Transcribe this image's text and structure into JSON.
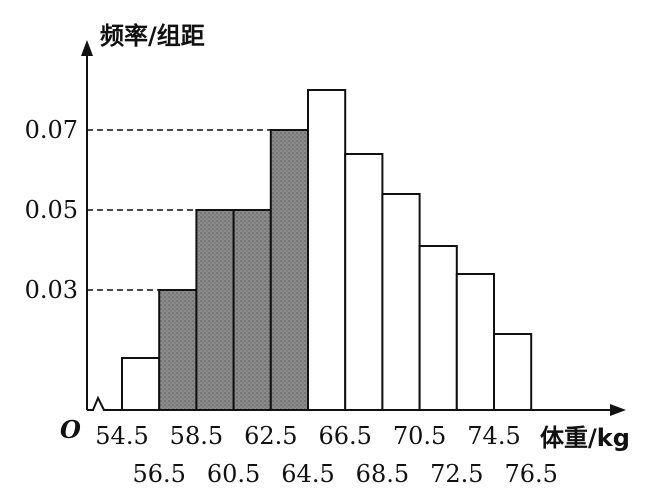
{
  "chart_data": {
    "type": "bar",
    "ylabel": "频率/组距",
    "xlabel": "体重/kg",
    "origin_label": "O",
    "bins": [
      {
        "from": 54.5,
        "to": 56.5,
        "value": 0.013,
        "shaded": false
      },
      {
        "from": 56.5,
        "to": 58.5,
        "value": 0.03,
        "shaded": true
      },
      {
        "from": 58.5,
        "to": 60.5,
        "value": 0.05,
        "shaded": true
      },
      {
        "from": 60.5,
        "to": 62.5,
        "value": 0.05,
        "shaded": true
      },
      {
        "from": 62.5,
        "to": 64.5,
        "value": 0.07,
        "shaded": true
      },
      {
        "from": 64.5,
        "to": 66.5,
        "value": 0.08,
        "shaded": false
      },
      {
        "from": 66.5,
        "to": 68.5,
        "value": 0.064,
        "shaded": false
      },
      {
        "from": 68.5,
        "to": 70.5,
        "value": 0.054,
        "shaded": false
      },
      {
        "from": 70.5,
        "to": 72.5,
        "value": 0.041,
        "shaded": false
      },
      {
        "from": 72.5,
        "to": 74.5,
        "value": 0.034,
        "shaded": false
      },
      {
        "from": 74.5,
        "to": 76.5,
        "value": 0.019,
        "shaded": false
      }
    ],
    "y_ticks": [
      {
        "value": 0.03,
        "label": "0.03"
      },
      {
        "value": 0.05,
        "label": "0.05"
      },
      {
        "value": 0.07,
        "label": "0.07"
      }
    ],
    "x_tick_labels_upper": [
      "54.5",
      "58.5",
      "62.5",
      "66.5",
      "70.5",
      "74.5"
    ],
    "x_tick_labels_lower": [
      "56.5",
      "60.5",
      "64.5",
      "68.5",
      "72.5",
      "76.5"
    ],
    "ylim": [
      0,
      0.09
    ],
    "grid": false,
    "axis_break_on_x": true,
    "colors": {
      "shaded_fill": "#8c8c8c",
      "bar_stroke": "#111111",
      "axis": "#111111"
    }
  }
}
